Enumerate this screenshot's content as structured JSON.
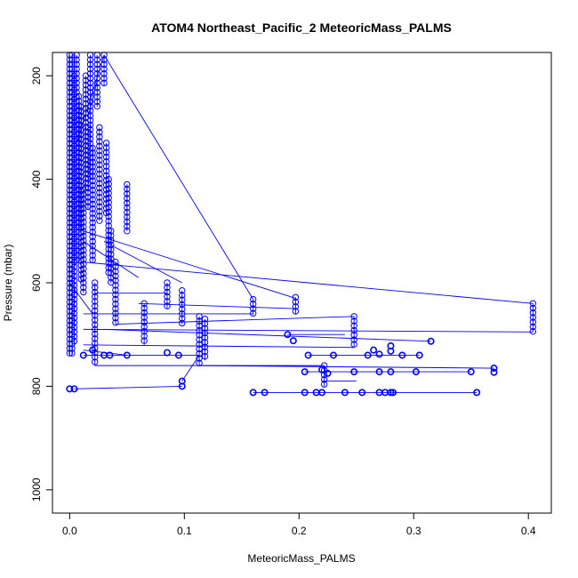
{
  "chart_data": {
    "type": "scatter",
    "title": "ATOM4 Northeast_Pacific_2 MeteoricMass_PALMS",
    "xlabel": "MeteoricMass_PALMS",
    "ylabel": "Pressure (mbar)",
    "xlim": [
      -0.015,
      0.42
    ],
    "ylim": [
      1045,
      155
    ],
    "y_reversed": true,
    "x_ticks": [
      0.0,
      0.1,
      0.2,
      0.3,
      0.4
    ],
    "x_tick_labels": [
      "0.0",
      "0.1",
      "0.2",
      "0.3",
      "0.4"
    ],
    "y_ticks": [
      200,
      400,
      600,
      800,
      1000
    ],
    "y_tick_labels": [
      "200",
      "400",
      "600",
      "800",
      "1000"
    ],
    "grid": false,
    "legend": "none",
    "color": "#0000ff",
    "marker": "open-circle",
    "connected_by_line": true,
    "series": [
      {
        "columns": [
          {
            "x": 0.0,
            "y_from": 160,
            "y_to": 740,
            "step": 9
          },
          {
            "x": 0.002,
            "y_from": 160,
            "y_to": 740,
            "step": 9
          },
          {
            "x": 0.004,
            "y_from": 200,
            "y_to": 720,
            "step": 9
          },
          {
            "x": 0.006,
            "y_from": 160,
            "y_to": 560,
            "step": 9
          },
          {
            "x": 0.008,
            "y_from": 240,
            "y_to": 500,
            "step": 9
          },
          {
            "x": 0.01,
            "y_from": 260,
            "y_to": 600,
            "step": 9
          },
          {
            "x": 0.012,
            "y_from": 420,
            "y_to": 620,
            "step": 9
          },
          {
            "x": 0.014,
            "y_from": 200,
            "y_to": 420,
            "step": 9
          },
          {
            "x": 0.016,
            "y_from": 300,
            "y_to": 460,
            "step": 9
          },
          {
            "x": 0.018,
            "y_from": 160,
            "y_to": 400,
            "step": 9
          },
          {
            "x": 0.02,
            "y_from": 340,
            "y_to": 560,
            "step": 9
          },
          {
            "x": 0.022,
            "y_from": 600,
            "y_to": 760,
            "step": 9
          },
          {
            "x": 0.024,
            "y_from": 160,
            "y_to": 260,
            "step": 9
          },
          {
            "x": 0.026,
            "y_from": 300,
            "y_to": 480,
            "step": 9
          },
          {
            "x": 0.03,
            "y_from": 160,
            "y_to": 220,
            "step": 9
          },
          {
            "x": 0.032,
            "y_from": 330,
            "y_to": 470,
            "step": 9
          },
          {
            "x": 0.034,
            "y_from": 400,
            "y_to": 580,
            "step": 9
          },
          {
            "x": 0.036,
            "y_from": 500,
            "y_to": 600,
            "step": 9
          },
          {
            "x": 0.04,
            "y_from": 560,
            "y_to": 680,
            "step": 9
          },
          {
            "x": 0.05,
            "y_from": 410,
            "y_to": 500,
            "step": 9
          },
          {
            "x": 0.065,
            "y_from": 640,
            "y_to": 720,
            "step": 9
          },
          {
            "x": 0.085,
            "y_from": 600,
            "y_to": 650,
            "step": 9
          },
          {
            "x": 0.098,
            "y_from": 615,
            "y_to": 680,
            "step": 9
          },
          {
            "x": 0.113,
            "y_from": 665,
            "y_to": 760,
            "step": 9
          },
          {
            "x": 0.118,
            "y_from": 670,
            "y_to": 750,
            "step": 9
          },
          {
            "x": 0.16,
            "y_from": 632,
            "y_to": 662,
            "step": 9
          },
          {
            "x": 0.197,
            "y_from": 628,
            "y_to": 660,
            "step": 9
          },
          {
            "x": 0.248,
            "y_from": 665,
            "y_to": 725,
            "step": 9
          },
          {
            "x": 0.222,
            "y_from": 760,
            "y_to": 800,
            "step": 9
          },
          {
            "x": 0.404,
            "y_from": 640,
            "y_to": 695,
            "step": 9
          }
        ],
        "points": [
          [
            0.03,
            740
          ],
          [
            0.035,
            740
          ],
          [
            0.05,
            740
          ],
          [
            0.012,
            740
          ],
          [
            0.02,
            730
          ],
          [
            0.0,
            805
          ],
          [
            0.004,
            805
          ],
          [
            0.098,
            800
          ],
          [
            0.098,
            790
          ],
          [
            0.19,
            700
          ],
          [
            0.195,
            712
          ],
          [
            0.208,
            740
          ],
          [
            0.23,
            740
          ],
          [
            0.26,
            740
          ],
          [
            0.27,
            738
          ],
          [
            0.28,
            732
          ],
          [
            0.28,
            722
          ],
          [
            0.29,
            740
          ],
          [
            0.305,
            740
          ],
          [
            0.315,
            713
          ],
          [
            0.265,
            730
          ],
          [
            0.22,
            768
          ],
          [
            0.205,
            772
          ],
          [
            0.225,
            775
          ],
          [
            0.248,
            772
          ],
          [
            0.27,
            772
          ],
          [
            0.28,
            772
          ],
          [
            0.302,
            772
          ],
          [
            0.35,
            772
          ],
          [
            0.37,
            765
          ],
          [
            0.37,
            773
          ],
          [
            0.16,
            812
          ],
          [
            0.17,
            812
          ],
          [
            0.205,
            812
          ],
          [
            0.215,
            812
          ],
          [
            0.22,
            812
          ],
          [
            0.24,
            812
          ],
          [
            0.255,
            812
          ],
          [
            0.27,
            812
          ],
          [
            0.275,
            812
          ],
          [
            0.28,
            812
          ],
          [
            0.282,
            812
          ],
          [
            0.355,
            812
          ],
          [
            0.095,
            740
          ],
          [
            0.085,
            735
          ]
        ],
        "segments": [
          [
            [
              0.03,
              160
            ],
            [
              0.16,
              632
            ]
          ],
          [
            [
              0.012,
              500
            ],
            [
              0.197,
              630
            ]
          ],
          [
            [
              0.012,
              560
            ],
            [
              0.404,
              640
            ]
          ],
          [
            [
              0.012,
              660
            ],
            [
              0.16,
              660
            ]
          ],
          [
            [
              0.03,
              520
            ],
            [
              0.098,
              600
            ]
          ],
          [
            [
              0.05,
              495
            ],
            [
              0.05,
              410
            ]
          ],
          [
            [
              0.012,
              690
            ],
            [
              0.404,
              695
            ]
          ],
          [
            [
              0.03,
              690
            ],
            [
              0.315,
              713
            ]
          ],
          [
            [
              0.012,
              720
            ],
            [
              0.248,
              725
            ]
          ],
          [
            [
              0.113,
              760
            ],
            [
              0.37,
              765
            ]
          ],
          [
            [
              0.098,
              760
            ],
            [
              0.222,
              760
            ]
          ],
          [
            [
              0.004,
              805
            ],
            [
              0.098,
              800
            ]
          ],
          [
            [
              0.022,
              760
            ],
            [
              0.098,
              760
            ]
          ],
          [
            [
              0.012,
              740
            ],
            [
              0.113,
              740
            ]
          ],
          [
            [
              0.022,
              620
            ],
            [
              0.085,
              620
            ]
          ],
          [
            [
              0.04,
              680
            ],
            [
              0.248,
              665
            ]
          ],
          [
            [
              0.06,
              640
            ],
            [
              0.197,
              650
            ]
          ],
          [
            [
              0.012,
              730
            ],
            [
              0.05,
              740
            ]
          ],
          [
            [
              0.19,
              700
            ],
            [
              0.24,
              700
            ]
          ],
          [
            [
              0.208,
              740
            ],
            [
              0.305,
              740
            ]
          ],
          [
            [
              0.22,
              790
            ],
            [
              0.25,
              790
            ]
          ],
          [
            [
              0.16,
              812
            ],
            [
              0.355,
              812
            ]
          ],
          [
            [
              0.205,
              772
            ],
            [
              0.35,
              772
            ]
          ],
          [
            [
              0.113,
              740
            ],
            [
              0.098,
              790
            ]
          ],
          [
            [
              0.016,
              280
            ],
            [
              0.024,
              210
            ]
          ],
          [
            [
              0.006,
              330
            ],
            [
              0.03,
              160
            ]
          ],
          [
            [
              0.012,
              520
            ],
            [
              0.06,
              590
            ]
          ],
          [
            [
              0.0,
              600
            ],
            [
              0.02,
              660
            ]
          ]
        ]
      }
    ]
  }
}
